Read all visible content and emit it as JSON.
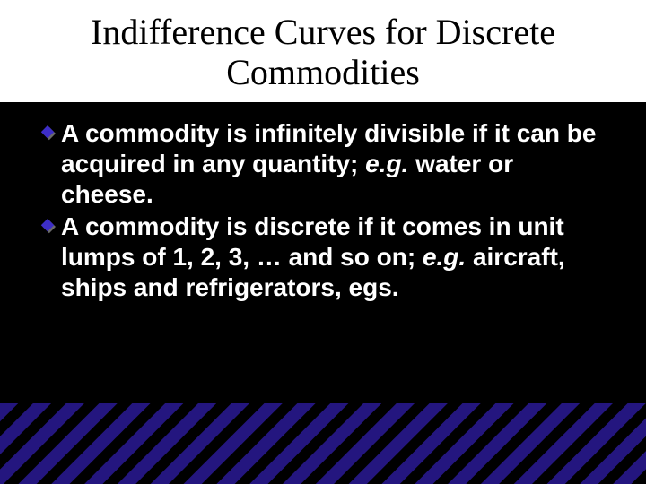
{
  "slide": {
    "title": "Indifference Curves for Discrete Commodities",
    "bullets": [
      {
        "pre": "A commodity is ",
        "keyword": "infinitely divisible",
        "post": " if it can be acquired in any quantity; ",
        "eg": "e.g.",
        "tail": " water or cheese."
      },
      {
        "pre": "A commodity is ",
        "keyword": "discrete",
        "post": " if it comes in unit lumps of 1, 2, 3, … and so on; ",
        "eg": "e.g.",
        "tail": " aircraft, ships and refrigerators, egs."
      }
    ]
  },
  "style": {
    "background_color": "#000000",
    "title_bg": "#ffffff",
    "title_color": "#000000",
    "title_font": "Times New Roman",
    "title_fontsize": 40,
    "body_color": "#ffffff",
    "body_font": "Arial",
    "body_fontsize": 28,
    "bullet_fill": "#3d2ec7",
    "bullet_shadow": "#6a6a6a",
    "stripe_color": "#24167f",
    "stripe_angle_deg": 45,
    "stripe_count": 22
  }
}
